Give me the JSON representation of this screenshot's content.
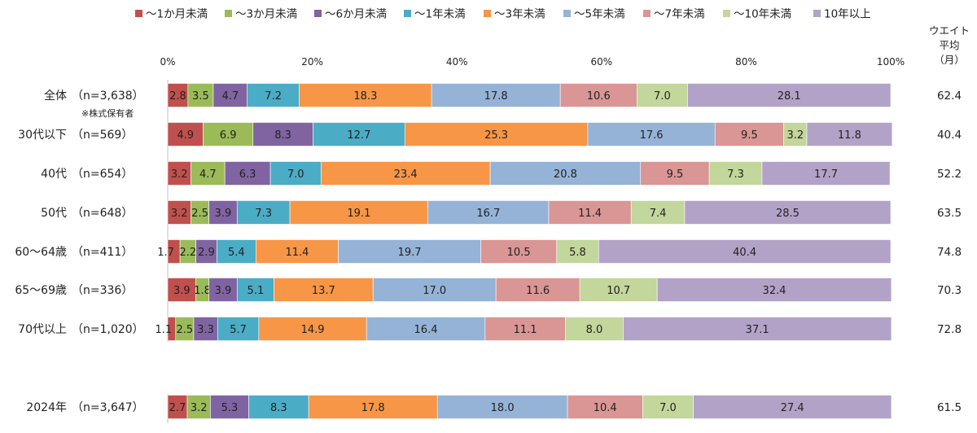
{
  "chart_data": {
    "type": "bar",
    "orientation": "horizontal",
    "stacked": true,
    "percent": true,
    "legend": [
      "～1か月未満",
      "～3か月未満",
      "～6か月未満",
      "～1年未満",
      "～3年未満",
      "～5年未満",
      "～7年未満",
      "～10年未満",
      "10年以上"
    ],
    "colors": [
      "#c0504d",
      "#9bbb59",
      "#8064a2",
      "#4bacc6",
      "#f79646",
      "#95b3d7",
      "#d99694",
      "#c3d69b",
      "#b3a2c7"
    ],
    "xlim": [
      0,
      100
    ],
    "xticks": [
      "0%",
      "20%",
      "40%",
      "60%",
      "80%",
      "100%"
    ],
    "avg_header": [
      "ウエイト",
      "平均",
      "（月）"
    ],
    "rows": [
      {
        "name": "全体",
        "n": "（n=3,638）",
        "note": "※株式保有者",
        "values": [
          2.8,
          3.5,
          4.7,
          7.2,
          18.3,
          17.8,
          10.6,
          7.0,
          28.1
        ],
        "avg": "62.4"
      },
      {
        "name": "30代以下",
        "n": "（n=569）",
        "values": [
          4.9,
          6.9,
          8.3,
          12.7,
          25.3,
          17.6,
          9.5,
          3.2,
          11.8
        ],
        "avg": "40.4"
      },
      {
        "name": "40代",
        "n": "（n=654）",
        "values": [
          3.2,
          4.7,
          6.3,
          7.0,
          23.4,
          20.8,
          9.5,
          7.3,
          17.7
        ],
        "avg": "52.2"
      },
      {
        "name": "50代",
        "n": "（n=648）",
        "values": [
          3.2,
          2.5,
          3.9,
          7.3,
          19.1,
          16.7,
          11.4,
          7.4,
          28.5
        ],
        "avg": "63.5"
      },
      {
        "name": "60～64歳",
        "n": "（n=411）",
        "values": [
          1.7,
          2.2,
          2.9,
          5.4,
          11.4,
          19.7,
          10.5,
          5.8,
          40.4
        ],
        "avg": "74.8"
      },
      {
        "name": "65～69歳",
        "n": "（n=336）",
        "values": [
          3.9,
          1.8,
          3.9,
          5.1,
          13.7,
          17.0,
          11.6,
          10.7,
          32.4
        ],
        "avg": "70.3"
      },
      {
        "name": "70代以上",
        "n": "（n=1,020）",
        "values": [
          1.1,
          2.5,
          3.3,
          5.7,
          14.9,
          16.4,
          11.1,
          8.0,
          37.1
        ],
        "avg": "72.8"
      },
      {
        "name": "2024年",
        "n": "（n=3,647）",
        "values": [
          2.7,
          3.2,
          5.3,
          8.3,
          17.8,
          18.0,
          10.4,
          7.0,
          27.4
        ],
        "avg": "61.5"
      }
    ]
  }
}
